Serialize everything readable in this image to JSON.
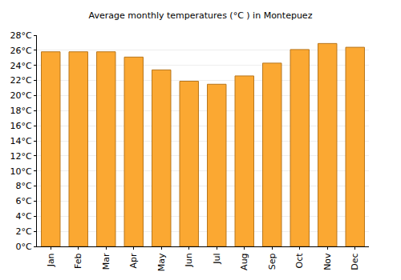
{
  "chart_data": {
    "type": "bar",
    "title": "Average monthly temperatures (°C ) in Montepuez",
    "categories": [
      "Jan",
      "Feb",
      "Mar",
      "Apr",
      "May",
      "Jun",
      "Jul",
      "Aug",
      "Sep",
      "Oct",
      "Nov",
      "Dec"
    ],
    "values": [
      25.8,
      25.8,
      25.8,
      25.1,
      23.4,
      21.9,
      21.5,
      22.6,
      24.3,
      26.1,
      26.9,
      26.4
    ],
    "color": "#fba832",
    "ylim": [
      0,
      28
    ],
    "yticks": [
      {
        "value": 0,
        "label": "0°C"
      },
      {
        "value": 2,
        "label": "2°C"
      },
      {
        "value": 4,
        "label": "4°C"
      },
      {
        "value": 6,
        "label": "6°C"
      },
      {
        "value": 8,
        "label": "8°C"
      },
      {
        "value": 10,
        "label": "10°C"
      },
      {
        "value": 12,
        "label": "12°C"
      },
      {
        "value": 14,
        "label": "14°C"
      },
      {
        "value": 16,
        "label": "16°C"
      },
      {
        "value": 18,
        "label": "18°C"
      },
      {
        "value": 20,
        "label": "20°C"
      },
      {
        "value": 22,
        "label": "22°C"
      },
      {
        "value": 24,
        "label": "24°C"
      },
      {
        "value": 26,
        "label": "26°C"
      },
      {
        "value": 28,
        "label": "28°C"
      }
    ],
    "grid": true
  }
}
